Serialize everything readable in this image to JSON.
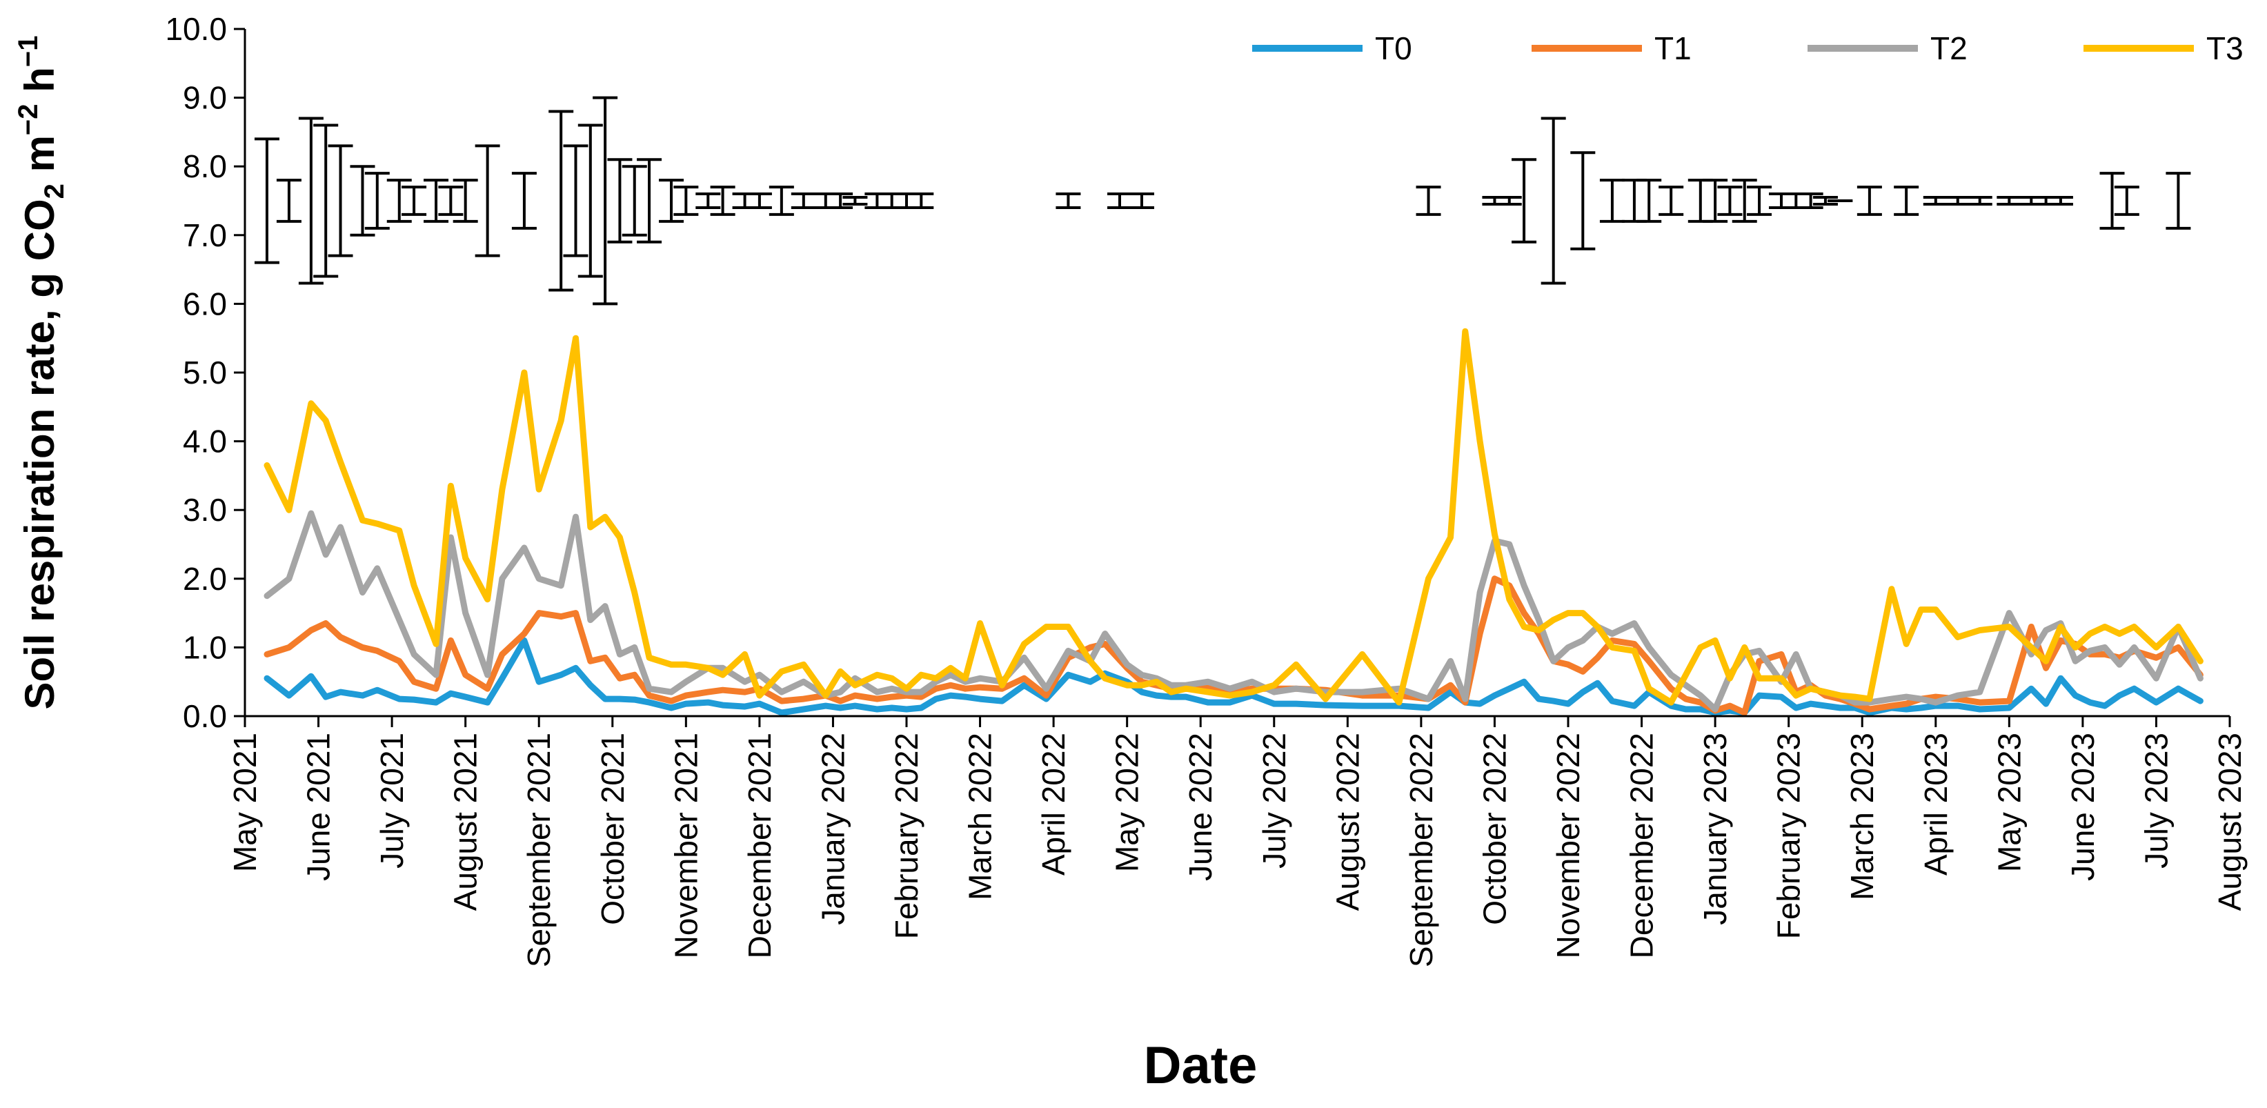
{
  "chart_data": {
    "type": "line",
    "title": "",
    "xlabel": "Date",
    "ylabel": {
      "prefix": "Soil respiration rate, g CO",
      "sub": "2",
      "mid": " m",
      "sup1": "−2",
      "mid2": " h",
      "sup2": "−1"
    },
    "ylim": [
      0,
      10
    ],
    "y_ticks": [
      "0.0",
      "1.0",
      "2.0",
      "3.0",
      "4.0",
      "5.0",
      "6.0",
      "7.0",
      "8.0",
      "9.0",
      "10.0"
    ],
    "x_ticks": [
      "May 2021",
      "June 2021",
      "July 2021",
      "August 2021",
      "September 2021",
      "October 2021",
      "November 2021",
      "December 2021",
      "January 2022",
      "February 2022",
      "March 2022",
      "April 2022",
      "May 2022",
      "June 2022",
      "July 2022",
      "August 2022",
      "September 2022",
      "October 2022",
      "November 2022",
      "December 2022",
      "January 2023",
      "February 2023",
      "March 2023",
      "April 2023",
      "May 2023",
      "June 2023",
      "July 2023",
      "August 2023"
    ],
    "x": [
      0.3,
      0.6,
      0.9,
      1.1,
      1.3,
      1.6,
      1.8,
      2.1,
      2.3,
      2.6,
      2.8,
      3.0,
      3.3,
      3.5,
      3.8,
      4.0,
      4.3,
      4.5,
      4.7,
      4.9,
      5.1,
      5.3,
      5.5,
      5.8,
      6.0,
      6.3,
      6.5,
      6.8,
      7.0,
      7.3,
      7.6,
      7.9,
      8.1,
      8.3,
      8.6,
      8.8,
      9.0,
      9.2,
      9.4,
      9.6,
      9.8,
      10.0,
      10.3,
      10.6,
      10.9,
      11.2,
      11.5,
      11.7,
      12.0,
      12.2,
      12.4,
      12.6,
      12.8,
      13.1,
      13.4,
      13.7,
      14.0,
      14.3,
      14.7,
      15.2,
      15.7,
      16.1,
      16.4,
      16.6,
      16.8,
      17.0,
      17.2,
      17.4,
      17.6,
      17.8,
      18.0,
      18.2,
      18.4,
      18.6,
      18.9,
      19.1,
      19.4,
      19.6,
      19.8,
      20.0,
      20.2,
      20.4,
      20.6,
      20.9,
      21.1,
      21.3,
      21.5,
      21.7,
      21.9,
      22.1,
      22.4,
      22.6,
      22.8,
      23.0,
      23.3,
      23.6,
      24.0,
      24.3,
      24.5,
      24.7,
      24.9,
      25.1,
      25.3,
      25.5,
      25.7,
      26.0,
      26.3,
      26.6
    ],
    "series": [
      {
        "name": "T0",
        "color": "#1f9bd7",
        "values": [
          0.55,
          0.3,
          0.58,
          0.28,
          0.35,
          0.3,
          0.38,
          0.25,
          0.24,
          0.2,
          0.33,
          0.28,
          0.2,
          0.55,
          1.1,
          0.5,
          0.6,
          0.7,
          0.45,
          0.25,
          0.25,
          0.24,
          0.2,
          0.12,
          0.18,
          0.2,
          0.16,
          0.14,
          0.18,
          0.05,
          0.1,
          0.15,
          0.12,
          0.15,
          0.1,
          0.12,
          0.1,
          0.12,
          0.25,
          0.3,
          0.28,
          0.25,
          0.22,
          0.45,
          0.25,
          0.6,
          0.5,
          0.62,
          0.5,
          0.35,
          0.3,
          0.28,
          0.28,
          0.2,
          0.2,
          0.3,
          0.18,
          0.18,
          0.16,
          0.15,
          0.15,
          0.12,
          0.35,
          0.2,
          0.18,
          0.3,
          0.4,
          0.5,
          0.25,
          0.22,
          0.18,
          0.35,
          0.48,
          0.22,
          0.15,
          0.35,
          0.15,
          0.1,
          0.1,
          0.05,
          0.08,
          0.05,
          0.3,
          0.28,
          0.12,
          0.18,
          0.15,
          0.12,
          0.12,
          0.05,
          0.12,
          0.1,
          0.12,
          0.15,
          0.15,
          0.1,
          0.12,
          0.4,
          0.18,
          0.55,
          0.3,
          0.2,
          0.15,
          0.3,
          0.4,
          0.2,
          0.4,
          0.22
        ]
      },
      {
        "name": "T1",
        "color": "#f47c2a",
        "values": [
          0.9,
          1.0,
          1.25,
          1.35,
          1.15,
          1.0,
          0.95,
          0.8,
          0.5,
          0.4,
          1.1,
          0.6,
          0.4,
          0.9,
          1.2,
          1.5,
          1.45,
          1.5,
          0.8,
          0.85,
          0.55,
          0.6,
          0.3,
          0.22,
          0.3,
          0.35,
          0.38,
          0.35,
          0.4,
          0.22,
          0.25,
          0.3,
          0.22,
          0.3,
          0.25,
          0.28,
          0.3,
          0.28,
          0.4,
          0.45,
          0.4,
          0.42,
          0.4,
          0.55,
          0.3,
          0.85,
          1.0,
          1.05,
          0.7,
          0.5,
          0.45,
          0.4,
          0.4,
          0.42,
          0.35,
          0.4,
          0.4,
          0.4,
          0.38,
          0.3,
          0.3,
          0.25,
          0.45,
          0.2,
          1.2,
          2.0,
          1.9,
          1.5,
          1.2,
          0.8,
          0.75,
          0.65,
          0.85,
          1.1,
          1.05,
          0.8,
          0.4,
          0.25,
          0.2,
          0.08,
          0.15,
          0.05,
          0.8,
          0.9,
          0.35,
          0.45,
          0.3,
          0.25,
          0.18,
          0.1,
          0.15,
          0.18,
          0.25,
          0.28,
          0.25,
          0.2,
          0.22,
          1.3,
          0.7,
          1.1,
          1.05,
          0.9,
          0.9,
          0.85,
          0.95,
          0.85,
          1.0,
          0.6
        ]
      },
      {
        "name": "T2",
        "color": "#a5a5a5",
        "values": [
          1.75,
          2.0,
          2.95,
          2.35,
          2.75,
          1.8,
          2.15,
          1.4,
          0.9,
          0.6,
          2.6,
          1.5,
          0.6,
          2.0,
          2.45,
          2.0,
          1.9,
          2.9,
          1.4,
          1.6,
          0.9,
          1.0,
          0.4,
          0.35,
          0.5,
          0.7,
          0.7,
          0.5,
          0.6,
          0.35,
          0.5,
          0.3,
          0.35,
          0.55,
          0.35,
          0.4,
          0.35,
          0.35,
          0.5,
          0.6,
          0.5,
          0.55,
          0.5,
          0.85,
          0.4,
          0.95,
          0.8,
          1.2,
          0.75,
          0.6,
          0.55,
          0.45,
          0.45,
          0.5,
          0.4,
          0.5,
          0.35,
          0.4,
          0.35,
          0.35,
          0.4,
          0.25,
          0.8,
          0.25,
          1.8,
          2.55,
          2.5,
          1.9,
          1.4,
          0.8,
          1.0,
          1.1,
          1.3,
          1.2,
          1.35,
          1.0,
          0.6,
          0.45,
          0.3,
          0.1,
          0.6,
          0.9,
          0.95,
          0.5,
          0.9,
          0.4,
          0.35,
          0.3,
          0.2,
          0.2,
          0.25,
          0.28,
          0.25,
          0.2,
          0.3,
          0.35,
          1.5,
          0.9,
          1.25,
          1.35,
          0.8,
          0.95,
          1.0,
          0.75,
          1.0,
          0.55,
          1.3,
          0.55
        ]
      },
      {
        "name": "T3",
        "color": "#ffc000",
        "values": [
          3.65,
          3.0,
          4.55,
          4.3,
          3.7,
          2.85,
          2.8,
          2.7,
          1.9,
          1.05,
          3.35,
          2.3,
          1.7,
          3.3,
          5.0,
          3.3,
          4.3,
          5.5,
          2.75,
          2.9,
          2.6,
          1.8,
          0.85,
          0.75,
          0.75,
          0.7,
          0.6,
          0.9,
          0.3,
          0.65,
          0.75,
          0.3,
          0.65,
          0.45,
          0.6,
          0.55,
          0.4,
          0.6,
          0.55,
          0.7,
          0.55,
          1.35,
          0.45,
          1.05,
          1.3,
          1.3,
          0.8,
          0.55,
          0.45,
          0.45,
          0.5,
          0.35,
          0.4,
          0.35,
          0.3,
          0.35,
          0.45,
          0.75,
          0.25,
          0.9,
          0.2,
          2.0,
          2.6,
          5.6,
          4.0,
          2.65,
          1.7,
          1.3,
          1.25,
          1.4,
          1.5,
          1.5,
          1.3,
          1.0,
          0.95,
          0.4,
          0.2,
          0.6,
          1.0,
          1.1,
          0.55,
          1.0,
          0.55,
          0.55,
          0.3,
          0.4,
          0.35,
          0.3,
          0.28,
          0.25,
          1.85,
          1.05,
          1.55,
          1.55,
          1.15,
          1.25,
          1.3,
          1.0,
          0.8,
          1.3,
          1.0,
          1.2,
          1.3,
          1.2,
          1.3,
          1.0,
          1.3,
          0.8
        ]
      }
    ],
    "error_bars": [
      [
        0.3,
        6.6,
        8.4
      ],
      [
        0.6,
        7.2,
        7.8
      ],
      [
        0.9,
        6.3,
        8.7
      ],
      [
        1.1,
        6.4,
        8.6
      ],
      [
        1.3,
        6.7,
        8.3
      ],
      [
        1.6,
        7.0,
        8.0
      ],
      [
        1.8,
        7.1,
        7.9
      ],
      [
        2.1,
        7.2,
        7.8
      ],
      [
        2.3,
        7.3,
        7.7
      ],
      [
        2.6,
        7.2,
        7.8
      ],
      [
        2.8,
        7.3,
        7.7
      ],
      [
        3.0,
        7.2,
        7.8
      ],
      [
        3.3,
        6.7,
        8.3
      ],
      [
        3.8,
        7.1,
        7.9
      ],
      [
        4.3,
        6.2,
        8.8
      ],
      [
        4.5,
        6.7,
        8.3
      ],
      [
        4.7,
        6.4,
        8.6
      ],
      [
        4.9,
        6.0,
        9.0
      ],
      [
        5.1,
        6.9,
        8.1
      ],
      [
        5.3,
        7.0,
        8.0
      ],
      [
        5.5,
        6.9,
        8.1
      ],
      [
        5.8,
        7.2,
        7.8
      ],
      [
        6.0,
        7.3,
        7.7
      ],
      [
        6.3,
        7.4,
        7.6
      ],
      [
        6.5,
        7.3,
        7.7
      ],
      [
        6.8,
        7.4,
        7.6
      ],
      [
        7.0,
        7.4,
        7.6
      ],
      [
        7.3,
        7.3,
        7.7
      ],
      [
        7.6,
        7.4,
        7.6
      ],
      [
        7.9,
        7.4,
        7.6
      ],
      [
        8.1,
        7.4,
        7.6
      ],
      [
        8.3,
        7.45,
        7.55
      ],
      [
        8.6,
        7.4,
        7.6
      ],
      [
        8.8,
        7.4,
        7.6
      ],
      [
        9.0,
        7.4,
        7.6
      ],
      [
        9.2,
        7.4,
        7.6
      ],
      [
        11.2,
        7.4,
        7.6
      ],
      [
        11.9,
        7.4,
        7.6
      ],
      [
        12.2,
        7.4,
        7.6
      ],
      [
        16.1,
        7.3,
        7.7
      ],
      [
        17.0,
        7.45,
        7.55
      ],
      [
        17.2,
        7.45,
        7.55
      ],
      [
        17.4,
        6.9,
        8.1
      ],
      [
        17.8,
        6.3,
        8.7
      ],
      [
        18.2,
        6.8,
        8.2
      ],
      [
        18.6,
        7.2,
        7.8
      ],
      [
        18.9,
        7.2,
        7.8
      ],
      [
        19.1,
        7.2,
        7.8
      ],
      [
        19.4,
        7.3,
        7.7
      ],
      [
        19.8,
        7.2,
        7.8
      ],
      [
        20.0,
        7.2,
        7.8
      ],
      [
        20.2,
        7.3,
        7.7
      ],
      [
        20.4,
        7.2,
        7.8
      ],
      [
        20.6,
        7.3,
        7.7
      ],
      [
        20.9,
        7.4,
        7.6
      ],
      [
        21.1,
        7.4,
        7.6
      ],
      [
        21.3,
        7.4,
        7.6
      ],
      [
        21.5,
        7.45,
        7.55
      ],
      [
        21.7,
        7.5,
        7.5
      ],
      [
        22.1,
        7.3,
        7.7
      ],
      [
        22.6,
        7.3,
        7.7
      ],
      [
        23.0,
        7.45,
        7.55
      ],
      [
        23.3,
        7.45,
        7.55
      ],
      [
        23.6,
        7.45,
        7.55
      ],
      [
        24.0,
        7.45,
        7.55
      ],
      [
        24.3,
        7.45,
        7.55
      ],
      [
        24.5,
        7.45,
        7.55
      ],
      [
        24.7,
        7.45,
        7.55
      ],
      [
        25.4,
        7.1,
        7.9
      ],
      [
        25.6,
        7.3,
        7.7
      ],
      [
        26.3,
        7.1,
        7.9
      ]
    ],
    "legend": {
      "position": "top-right",
      "entries": [
        "T0",
        "T1",
        "T2",
        "T3"
      ]
    },
    "grid": false
  }
}
